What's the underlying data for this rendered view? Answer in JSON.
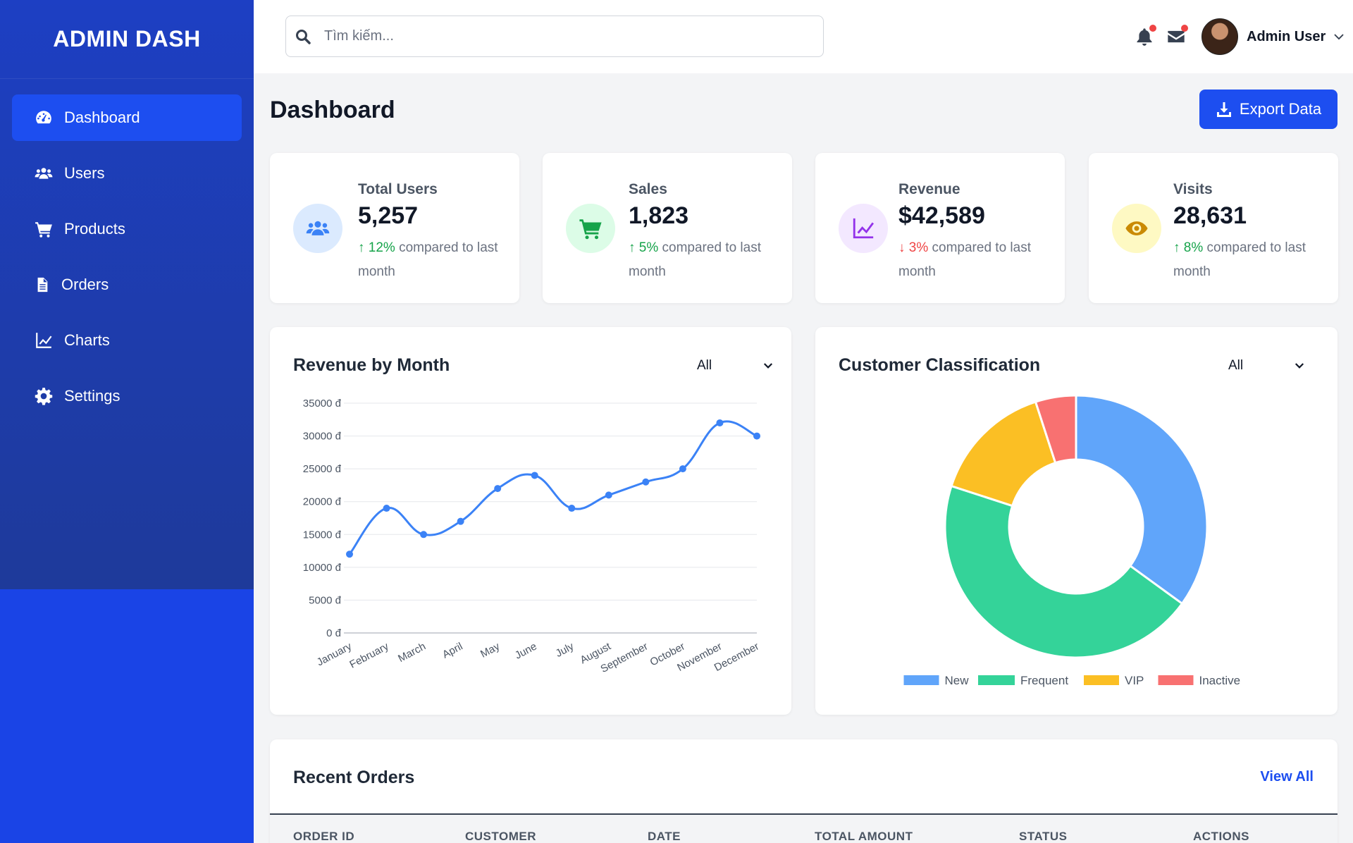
{
  "app": {
    "logo": "ADMIN DASH"
  },
  "sidebar": {
    "items": [
      {
        "label": "Dashboard",
        "icon": "gauge-icon",
        "active": true
      },
      {
        "label": "Users",
        "icon": "users-icon"
      },
      {
        "label": "Products",
        "icon": "cart-icon"
      },
      {
        "label": "Orders",
        "icon": "file-icon"
      },
      {
        "label": "Charts",
        "icon": "chart-line-icon"
      },
      {
        "label": "Settings",
        "icon": "gear-icon"
      }
    ]
  },
  "header": {
    "search_placeholder": "Tìm kiếm...",
    "user_name": "Admin User"
  },
  "page": {
    "title": "Dashboard",
    "export_label": "Export Data"
  },
  "stats": [
    {
      "label": "Total Users",
      "value": "5,257",
      "change": "12%",
      "direction": "up",
      "suffix": " compared to last month",
      "color": "#3b82f6",
      "bg": "#dbeafe"
    },
    {
      "label": "Sales",
      "value": "1,823",
      "change": "5%",
      "direction": "up",
      "suffix": " compared to last month",
      "color": "#16a34a",
      "bg": "#dcfce7"
    },
    {
      "label": "Revenue",
      "value": "$42,589",
      "change": "3%",
      "direction": "down",
      "suffix": " compared to last month",
      "color": "#9333ea",
      "bg": "#f3e8ff"
    },
    {
      "label": "Visits",
      "value": "28,631",
      "change": "8%",
      "direction": "up",
      "suffix": " compared to last month",
      "color": "#ca8a04",
      "bg": "#fef9c3"
    }
  ],
  "charts": {
    "revenue": {
      "title": "Revenue by Month",
      "filter": "All"
    },
    "customers": {
      "title": "Customer Classification",
      "filter": "All"
    }
  },
  "chart_data": [
    {
      "type": "line",
      "title": "Revenue by Month",
      "categories": [
        "January",
        "February",
        "March",
        "April",
        "May",
        "June",
        "July",
        "August",
        "September",
        "October",
        "November",
        "December"
      ],
      "series": [
        {
          "values": [
            12000,
            19000,
            15000,
            17000,
            22000,
            24000,
            19000,
            21000,
            23000,
            25000,
            32000,
            30000
          ],
          "color": "#3b82f6"
        }
      ],
      "yticks": [
        "35000 đ",
        "30000 đ",
        "25000 đ",
        "20000 đ",
        "15000 đ",
        "10000 đ",
        "5000 đ",
        "0 đ"
      ],
      "ylim": [
        0,
        35000
      ],
      "grid": true
    },
    {
      "type": "pie",
      "title": "Customer Classification",
      "categories": [
        "New",
        "Frequent",
        "VIP",
        "Inactive"
      ],
      "values": [
        35,
        45,
        15,
        5
      ],
      "colors": [
        "#60a5fa",
        "#34d399",
        "#fbbf24",
        "#f87171"
      ],
      "legend": "bottom"
    }
  ],
  "orders": {
    "title": "Recent Orders",
    "view_all": "View All",
    "columns": [
      "ORDER ID",
      "CUSTOMER",
      "DATE",
      "TOTAL AMOUNT",
      "STATUS",
      "ACTIONS"
    ]
  }
}
